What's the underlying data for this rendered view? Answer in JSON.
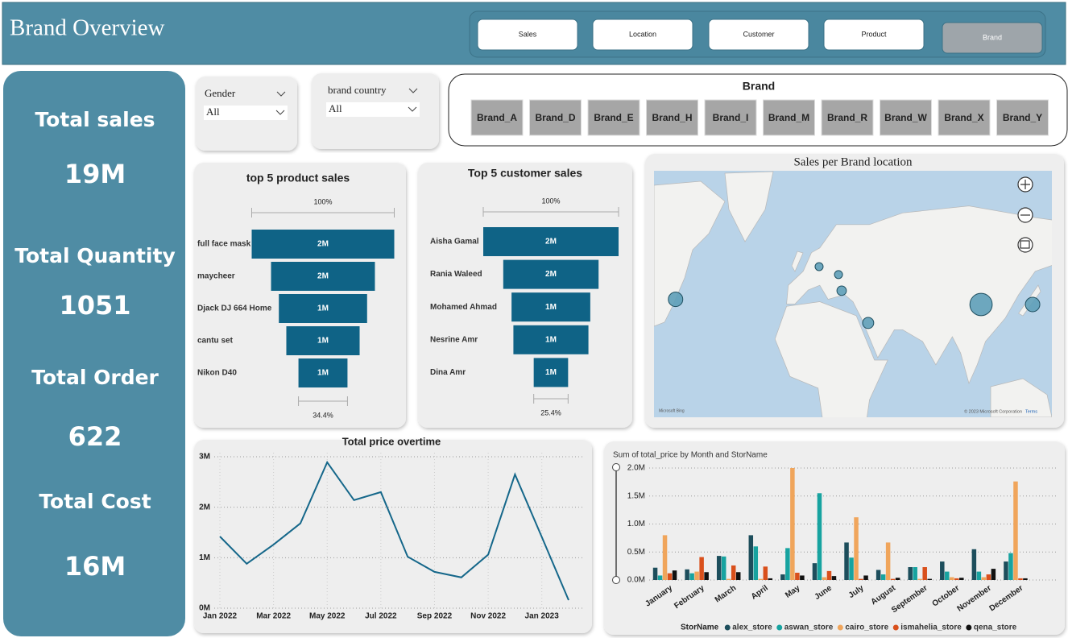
{
  "header": {
    "title": "Brand Overview",
    "nav": [
      "Sales",
      "Location",
      "Customer",
      "Product",
      "Brand"
    ]
  },
  "kpis": [
    {
      "label": "Total sales",
      "value": "19M"
    },
    {
      "label": "Total Quantity",
      "value": "1051"
    },
    {
      "label": "Total Order",
      "value": "622"
    },
    {
      "label": "Total Cost",
      "value": "16M"
    }
  ],
  "filters": [
    {
      "label": "Gender",
      "value": "All"
    },
    {
      "label": "brand country",
      "value": "All"
    }
  ],
  "brand_slicer": {
    "title": "Brand",
    "items": [
      "Brand_A",
      "Brand_D",
      "Brand_E",
      "Brand_H",
      "Brand_I",
      "Brand_M",
      "Brand_R",
      "Brand_W",
      "Brand_X",
      "Brand_Y"
    ]
  },
  "chart_data": [
    {
      "type": "funnel",
      "title": "top 5 product sales",
      "categories": [
        "full face mask",
        "maycheer",
        "Djack DJ 664 Home",
        "cantu set",
        "Nikon D40"
      ],
      "values": [
        2.1,
        1.53,
        1.3,
        1.08,
        0.722
      ],
      "value_labels": [
        "2M",
        "2M",
        "1M",
        "1M",
        "1M"
      ],
      "top_label": "100%",
      "bottom_label": "34.4%",
      "color": "#0f6386"
    },
    {
      "type": "funnel",
      "title": "Top 5 customer sales",
      "categories": [
        "Aisha Gamal",
        "Rania Waleed",
        "Mohamed Ahmad",
        "Nesrine Amr",
        "Dina Amr"
      ],
      "values": [
        2.2,
        1.55,
        1.28,
        1.22,
        0.559
      ],
      "value_labels": [
        "2M",
        "2M",
        "1M",
        "1M",
        "1M"
      ],
      "top_label": "100%",
      "bottom_label": "25.4%",
      "color": "#0f6386"
    },
    {
      "type": "map",
      "title": "Sales per Brand location",
      "lon": [
        -77,
        9.6,
        21.3,
        23.2,
        39.2,
        107.3,
        138.4
      ],
      "lat": [
        38,
        52,
        48.6,
        41.7,
        27.9,
        35.8,
        35.8
      ],
      "values": [
        2.1,
        0.65,
        0.65,
        0.9,
        1.25,
        5,
        2.1
      ],
      "color": "#5e9fb8",
      "attribution": [
        "Microsoft Bing",
        "© 2023 Microsoft Corporation",
        "Terms"
      ]
    },
    {
      "type": "line",
      "title": "Total price overtime",
      "categories": [
        "Jan 2022",
        null,
        "Mar 2022",
        null,
        "May 2022",
        null,
        "Jul 2022",
        null,
        "Sep 2022",
        null,
        "Nov 2022",
        null,
        "Jan 2023",
        null
      ],
      "values": [
        1.42,
        0.88,
        1.26,
        1.68,
        2.89,
        2.14,
        2.3,
        1.02,
        0.72,
        0.61,
        1.06,
        2.65,
        1.41,
        0.16
      ],
      "color": "#15678a",
      "ylim": [
        0,
        3
      ],
      "yticks": [
        {
          "value": 0,
          "label": "0M"
        },
        {
          "value": 1,
          "label": "1M"
        },
        {
          "value": 2,
          "label": "2M"
        },
        {
          "value": 3,
          "label": "3M"
        }
      ],
      "grid": true
    },
    {
      "type": "bar",
      "title": "Sum of total_price by Month and StorName",
      "legend_title": "StorName",
      "categories": [
        "January",
        "February",
        "March",
        "April",
        "May",
        "June",
        "July",
        "August",
        "September",
        "October",
        "November",
        "December"
      ],
      "series": [
        {
          "name": "alex_store",
          "color": "#1d4e5c",
          "values": [
            0.22,
            0.19,
            0.43,
            0.8,
            0.1,
            0.3,
            0.67,
            0.18,
            0.23,
            0.33,
            0.55,
            0.33
          ]
        },
        {
          "name": "aswan_store",
          "color": "#17a3a0",
          "values": [
            0.08,
            0.12,
            0.42,
            0.6,
            0.57,
            1.55,
            0.4,
            0.1,
            0.23,
            0.15,
            0.15,
            0.48
          ]
        },
        {
          "name": "cairo_store",
          "color": "#f0a55b",
          "values": [
            0.8,
            0.15,
            0.02,
            0.02,
            2.0,
            0.05,
            1.12,
            0.67,
            0.02,
            0.05,
            0.05,
            1.76
          ]
        },
        {
          "name": "ismahelia_store",
          "color": "#d9501c",
          "values": [
            0.12,
            0.41,
            0.26,
            0.24,
            0.13,
            0.16,
            0.02,
            0.02,
            0.23,
            0.03,
            0.1,
            0.03
          ]
        },
        {
          "name": "qena_store",
          "color": "#111111",
          "values": [
            0.17,
            0.14,
            0.14,
            0.03,
            0.08,
            0.07,
            0.08,
            0.04,
            0.02,
            0.04,
            0.2,
            0.03
          ]
        }
      ],
      "ylim": [
        0,
        2
      ],
      "yticks": [
        {
          "value": 0,
          "label": "0.0M"
        },
        {
          "value": 0.5,
          "label": "0.5M"
        },
        {
          "value": 1,
          "label": "1.0M"
        },
        {
          "value": 1.5,
          "label": "1.5M"
        },
        {
          "value": 2,
          "label": "2.0M"
        }
      ],
      "grid": true
    }
  ]
}
